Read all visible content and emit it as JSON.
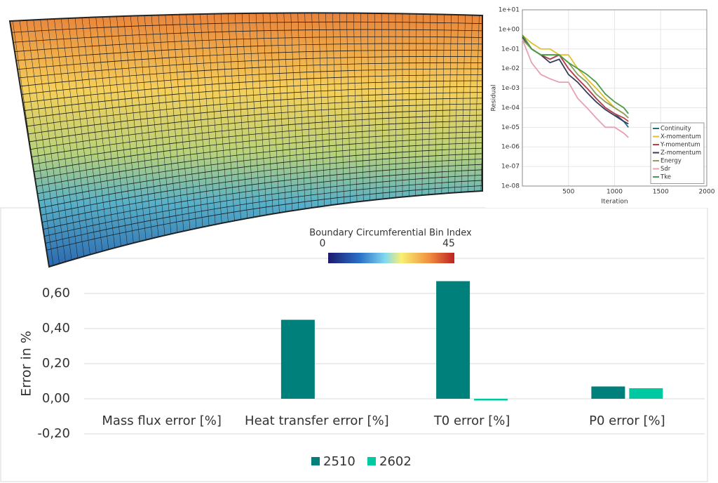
{
  "mesh_view": {
    "colorbar": {
      "title": "Boundary Circumferential Bin Index",
      "ticks": [
        0,
        45
      ]
    }
  },
  "chart_data": [
    {
      "type": "line",
      "x_label": "Iteration",
      "y_label": "Residual",
      "yscale": "log",
      "grid": true,
      "legend": "lower right",
      "x": [
        1,
        100,
        200,
        300,
        400,
        500,
        600,
        700,
        800,
        900,
        1000,
        1100,
        1150
      ],
      "xlim": [
        0,
        2000
      ],
      "xticks": [
        500,
        1000,
        1500,
        2000
      ],
      "ylim": [
        1e-08,
        10
      ],
      "yticks": [
        {
          "value": 1e-08,
          "label": "1e-08"
        },
        {
          "value": 1e-07,
          "label": "1e-07"
        },
        {
          "value": 1e-06,
          "label": "1e-06"
        },
        {
          "value": 1e-05,
          "label": "1e-05"
        },
        {
          "value": 0.0001,
          "label": "1e-04"
        },
        {
          "value": 0.001,
          "label": "1e-03"
        },
        {
          "value": 0.01,
          "label": "1e-02"
        },
        {
          "value": 0.1,
          "label": "1e-01"
        },
        {
          "value": 1,
          "label": "1e+00"
        },
        {
          "value": 10,
          "label": "1e+01"
        }
      ],
      "series": [
        {
          "name": "Continuity",
          "color": "#1f6f8b",
          "values": [
            0.5,
            0.1,
            0.05,
            0.03,
            0.05,
            0.01,
            0.003,
            0.001,
            0.0003,
            0.0001,
            5e-05,
            2e-05,
            1e-05
          ]
        },
        {
          "name": "X-momentum",
          "color": "#e0c030",
          "values": [
            0.5,
            0.2,
            0.1,
            0.1,
            0.05,
            0.05,
            0.01,
            0.003,
            0.001,
            0.0003,
            0.0001,
            5e-05,
            3e-05
          ]
        },
        {
          "name": "Y-momentum",
          "color": "#c0404a",
          "values": [
            0.5,
            0.1,
            0.05,
            0.03,
            0.05,
            0.01,
            0.003,
            0.001,
            0.0003,
            0.0001,
            5e-05,
            3e-05,
            2e-05
          ]
        },
        {
          "name": "Z-momentum",
          "color": "#3a3a5a",
          "values": [
            0.4,
            0.1,
            0.05,
            0.02,
            0.03,
            0.005,
            0.002,
            0.0006,
            0.0002,
            8e-05,
            4e-05,
            2e-05,
            1.5e-05
          ]
        },
        {
          "name": "Energy",
          "color": "#8aa060",
          "values": [
            0.3,
            0.1,
            0.05,
            0.05,
            0.05,
            0.02,
            0.005,
            0.002,
            0.0005,
            0.0002,
            0.0001,
            5e-05,
            3e-05
          ]
        },
        {
          "name": "Sdr",
          "color": "#e8a0b0",
          "values": [
            0.3,
            0.02,
            0.005,
            0.003,
            0.002,
            0.002,
            0.0003,
            0.0001,
            3e-05,
            1e-05,
            1e-05,
            5e-06,
            3e-06
          ]
        },
        {
          "name": "Tke",
          "color": "#4a9a4a",
          "values": [
            0.5,
            0.1,
            0.05,
            0.05,
            0.05,
            0.02,
            0.01,
            0.005,
            0.002,
            0.0005,
            0.0002,
            0.0001,
            5e-05
          ]
        }
      ]
    },
    {
      "type": "bar",
      "y_label": "Error in %",
      "grid": true,
      "legend": "bottom",
      "categories": [
        "Mass flux error [%]",
        "Heat transfer error [%]",
        "T0 error [%]",
        "P0 error [%]"
      ],
      "ylim": [
        -0.2,
        0.8
      ],
      "yticks": [
        {
          "value": -0.2,
          "label": "-0,20"
        },
        {
          "value": 0,
          "label": "0,00"
        },
        {
          "value": 0.2,
          "label": "0,20"
        },
        {
          "value": 0.4,
          "label": "0,40"
        },
        {
          "value": 0.6,
          "label": "0,60"
        }
      ],
      "series": [
        {
          "name": "2510",
          "color": "#00807a",
          "values": [
            0,
            0.45,
            0.67,
            0.07
          ]
        },
        {
          "name": "2602",
          "color": "#00c8a0",
          "values": [
            0,
            0,
            -0.01,
            0.06
          ]
        }
      ]
    }
  ]
}
